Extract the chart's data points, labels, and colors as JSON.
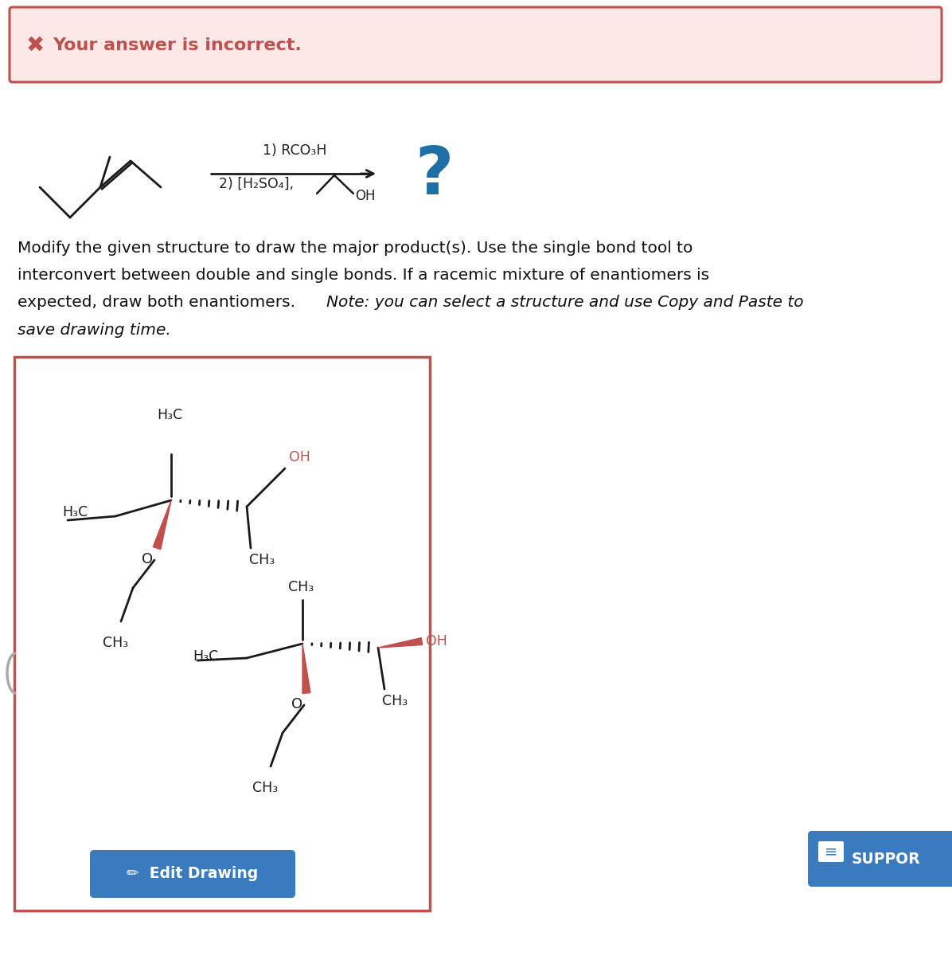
{
  "bg_color": "#ffffff",
  "error_box_bg": "#fde8e8",
  "error_box_border": "#c0504d",
  "error_text": "Your answer is incorrect.",
  "error_x_color": "#c0504d",
  "instruction_line1": "Modify the given structure to draw the major product(s). Use the single bond tool to",
  "instruction_line2": "interconvert between double and single bonds. If a racemic mixture of enantiomers is",
  "instruction_line3_normal": "expected, draw both enantiomers. ",
  "instruction_line3_italic": "Note: you can select a structure and use Copy and Paste to",
  "instruction_line4_italic": "save drawing time.",
  "reagent_line1": "1) RCO₃H",
  "reagent_line2": "2) [H₂SO₄],",
  "question_mark_color": "#1e6fa5",
  "bond_black": "#1a1a1a",
  "bond_red": "#c0504d",
  "oh_red": "#c0504d",
  "edit_btn_color": "#3a7abf",
  "edit_btn_text": "Edit Drawing",
  "support_btn_color": "#3a7abf",
  "support_btn_text": "SUPPOR",
  "draw_box_border": "#c0504d"
}
